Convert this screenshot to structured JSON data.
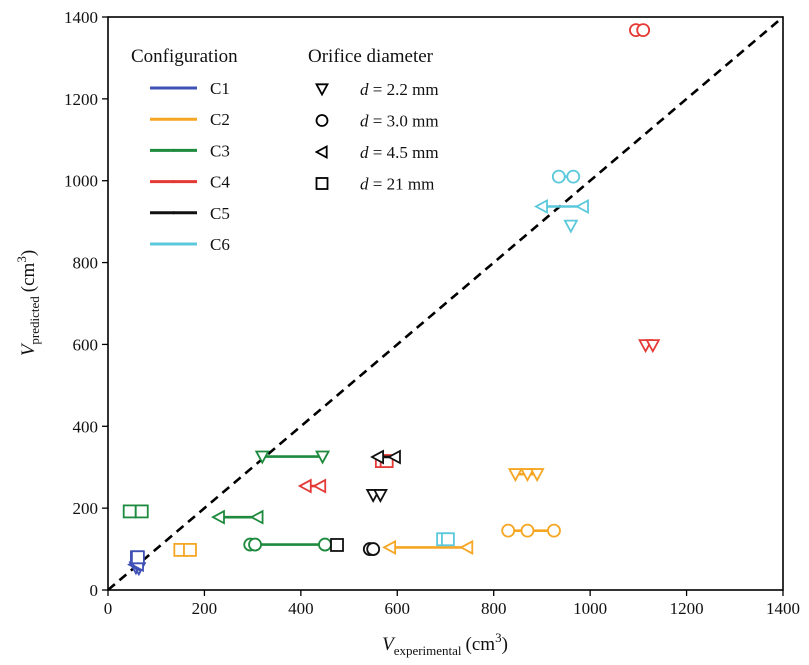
{
  "chart_data": {
    "type": "scatter",
    "xlabel": {
      "main": "V",
      "sub": "experimental",
      "unit": "(cm",
      "sup": "3",
      "close": ")"
    },
    "ylabel": {
      "main": "V",
      "sub": "predicted",
      "unit": "(cm",
      "sup": "3",
      "close": ")"
    },
    "xlim": [
      0,
      1400
    ],
    "ylim": [
      0,
      1400
    ],
    "xticks": [
      0,
      200,
      400,
      600,
      800,
      1000,
      1200,
      1400
    ],
    "yticks": [
      0,
      200,
      400,
      600,
      800,
      1000,
      1200,
      1400
    ],
    "grid": false,
    "reference_line": {
      "style": "dashed",
      "color": "#000000",
      "from": [
        0,
        0
      ],
      "to": [
        1400,
        1400
      ]
    },
    "legend_configuration": {
      "title": "Configuration",
      "placement": "top-left",
      "entries": [
        {
          "label": "C1",
          "color": "#3f51b5"
        },
        {
          "label": "C2",
          "color": "#f5a623"
        },
        {
          "label": "C3",
          "color": "#1e8a3e"
        },
        {
          "label": "C4",
          "color": "#e53935"
        },
        {
          "label": "C5",
          "color": "#111111"
        },
        {
          "label": "C6",
          "color": "#5bc8dc"
        }
      ]
    },
    "legend_orifice": {
      "title": "Orifice diameter",
      "entries": [
        {
          "marker": "triangle_down",
          "var": "d",
          "eq": " = ",
          "value": "2.2 mm"
        },
        {
          "marker": "circle",
          "var": "d",
          "eq": " = ",
          "value": "3.0 mm"
        },
        {
          "marker": "triangle_left",
          "var": "d",
          "eq": " = ",
          "value": "4.5 mm"
        },
        {
          "marker": "square",
          "var": "d",
          "eq": " = ",
          "value": "21 mm"
        }
      ]
    },
    "series": [
      {
        "name": "C1",
        "color": "#3f51b5",
        "groups": [
          {
            "marker": "triangle_down",
            "x": [
              58,
              64
            ],
            "y": [
              55,
              53
            ]
          },
          {
            "marker": "triangle_left",
            "x": [
              56,
              62
            ],
            "y": [
              62,
              62
            ]
          },
          {
            "marker": "square",
            "x": [
              60,
              62
            ],
            "y": [
              80,
              80
            ]
          }
        ]
      },
      {
        "name": "C2",
        "color": "#f5a623",
        "groups": [
          {
            "marker": "triangle_down",
            "x": [
              845,
              870,
              890
            ],
            "y": [
              283,
              283,
              283
            ]
          },
          {
            "marker": "circle",
            "x": [
              830,
              870,
              925
            ],
            "y": [
              145,
              145,
              145
            ]
          },
          {
            "marker": "triangle_left",
            "x": [
              585,
              745
            ],
            "y": [
              104,
              104
            ]
          },
          {
            "marker": "square",
            "x": [
              150,
              170
            ],
            "y": [
              98,
              98
            ]
          }
        ]
      },
      {
        "name": "C3",
        "color": "#1e8a3e",
        "groups": [
          {
            "marker": "triangle_down",
            "x": [
              320,
              445
            ],
            "y": [
              326,
              326
            ]
          },
          {
            "marker": "circle",
            "x": [
              295,
              305,
              450
            ],
            "y": [
              111,
              111,
              111
            ]
          },
          {
            "marker": "triangle_left",
            "x": [
              230,
              310
            ],
            "y": [
              178,
              178
            ]
          },
          {
            "marker": "square",
            "x": [
              45,
              70
            ],
            "y": [
              192,
              192
            ]
          }
        ]
      },
      {
        "name": "C4",
        "color": "#e53935",
        "groups": [
          {
            "marker": "circle",
            "x": [
              1095,
              1110
            ],
            "y": [
              1368,
              1368
            ]
          },
          {
            "marker": "triangle_down",
            "x": [
              1115,
              1130
            ],
            "y": [
              598,
              598
            ]
          },
          {
            "marker": "triangle_left",
            "x": [
              410,
              440
            ],
            "y": [
              254,
              254
            ]
          },
          {
            "marker": "square",
            "x": [
              568,
              578
            ],
            "y": [
              315,
              315
            ]
          }
        ]
      },
      {
        "name": "C5",
        "color": "#111111",
        "groups": [
          {
            "marker": "triangle_down",
            "x": [
              550,
              565
            ],
            "y": [
              232,
              232
            ]
          },
          {
            "marker": "triangle_left",
            "x": [
              560,
              595
            ],
            "y": [
              325,
              325
            ]
          },
          {
            "marker": "square",
            "x": [
              475
            ],
            "y": [
              110
            ]
          },
          {
            "marker": "circle",
            "x": [
              543,
              550
            ],
            "y": [
              100,
              100
            ]
          }
        ]
      },
      {
        "name": "C6",
        "color": "#5bc8dc",
        "groups": [
          {
            "marker": "circle",
            "x": [
              935,
              965
            ],
            "y": [
              1010,
              1010
            ]
          },
          {
            "marker": "triangle_left",
            "x": [
              900,
              985
            ],
            "y": [
              937,
              937
            ]
          },
          {
            "marker": "triangle_down",
            "x": [
              960
            ],
            "y": [
              890
            ]
          },
          {
            "marker": "square",
            "x": [
              695,
              705
            ],
            "y": [
              124,
              124
            ]
          }
        ]
      }
    ]
  }
}
